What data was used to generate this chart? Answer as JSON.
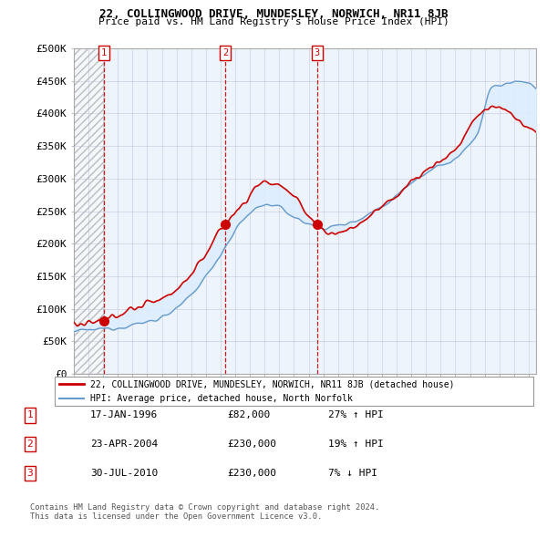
{
  "title1": "22, COLLINGWOOD DRIVE, MUNDESLEY, NORWICH, NR11 8JB",
  "title2": "Price paid vs. HM Land Registry's House Price Index (HPI)",
  "xlim_start": 1994.0,
  "xlim_end": 2025.5,
  "ylim": [
    0,
    500000
  ],
  "yticks": [
    0,
    50000,
    100000,
    150000,
    200000,
    250000,
    300000,
    350000,
    400000,
    450000,
    500000
  ],
  "ytick_labels": [
    "£0",
    "£50K",
    "£100K",
    "£150K",
    "£200K",
    "£250K",
    "£300K",
    "£350K",
    "£400K",
    "£450K",
    "£500K"
  ],
  "sale_dates": [
    1996.04,
    2004.31,
    2010.58
  ],
  "sale_prices": [
    82000,
    230000,
    230000
  ],
  "sale_labels": [
    "1",
    "2",
    "3"
  ],
  "legend_line1": "22, COLLINGWOOD DRIVE, MUNDESLEY, NORWICH, NR11 8JB (detached house)",
  "legend_line2": "HPI: Average price, detached house, North Norfolk",
  "table_entries": [
    {
      "num": "1",
      "date": "17-JAN-1996",
      "price": "£82,000",
      "hpi": "27% ↑ HPI"
    },
    {
      "num": "2",
      "date": "23-APR-2004",
      "price": "£230,000",
      "hpi": "19% ↑ HPI"
    },
    {
      "num": "3",
      "date": "30-JUL-2010",
      "price": "£230,000",
      "hpi": "7% ↓ HPI"
    }
  ],
  "footer": "Contains HM Land Registry data © Crown copyright and database right 2024.\nThis data is licensed under the Open Government Licence v3.0.",
  "red_color": "#cc0000",
  "blue_color": "#6699cc",
  "fill_color": "#ddeeff",
  "chart_bg": "#eef4fb"
}
